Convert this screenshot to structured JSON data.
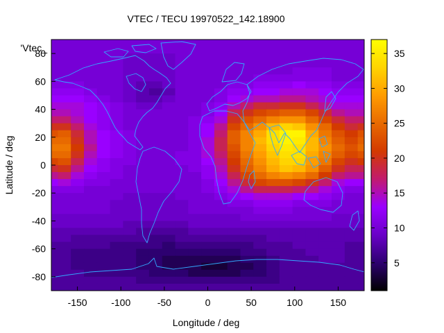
{
  "chart_data": {
    "type": "heatmap",
    "title": "VTEC / TECU 19970522_142.18900",
    "xlabel": "Longitude / deg",
    "ylabel": "Latitude / deg",
    "key_label": "'Vtec_",
    "xlim": [
      -180,
      180
    ],
    "ylim": [
      -90,
      90
    ],
    "xticks": [
      -150,
      -100,
      -50,
      0,
      50,
      100,
      150
    ],
    "yticks": [
      -80,
      -60,
      -40,
      -20,
      0,
      20,
      40,
      60,
      80
    ],
    "colorbar": {
      "range": [
        1,
        37
      ],
      "ticks": [
        5,
        10,
        15,
        20,
        25,
        30,
        35
      ],
      "palette": [
        "#000000",
        "#2d0070",
        "#6a00c8",
        "#9a00ff",
        "#c21b6e",
        "#d33a00",
        "#e86a00",
        "#ff9c00",
        "#ffd400",
        "#ffff00"
      ]
    },
    "grid": false,
    "coastline_color": "#33aaff",
    "lon_step": 15,
    "lat_step": 5,
    "lons": [
      -180,
      -165,
      -150,
      -135,
      -120,
      -105,
      -90,
      -75,
      -60,
      -45,
      -30,
      -15,
      0,
      15,
      30,
      45,
      60,
      75,
      90,
      105,
      120,
      135,
      150,
      165,
      180
    ],
    "lats": [
      87.5,
      82.5,
      77.5,
      72.5,
      67.5,
      62.5,
      57.5,
      52.5,
      47.5,
      42.5,
      37.5,
      32.5,
      27.5,
      22.5,
      17.5,
      12.5,
      7.5,
      2.5,
      -2.5,
      -7.5,
      -12.5,
      -17.5,
      -22.5,
      -27.5,
      -32.5,
      -37.5,
      -42.5,
      -47.5,
      -52.5,
      -57.5,
      -62.5,
      -67.5,
      -72.5,
      -77.5,
      -82.5,
      -87.5
    ],
    "values": [
      [
        10,
        10,
        10,
        10,
        10,
        10,
        10,
        10,
        10,
        10,
        10,
        10,
        10,
        10,
        10,
        10,
        10,
        10,
        10,
        10,
        10,
        10,
        10,
        10,
        10
      ],
      [
        10,
        10,
        10,
        10,
        10,
        10,
        10,
        10,
        10,
        10,
        10,
        10,
        10,
        10,
        10,
        10,
        10,
        10,
        10,
        10,
        10,
        10,
        10,
        10,
        10
      ],
      [
        10,
        10,
        10,
        10,
        10,
        10,
        9,
        9,
        9,
        9,
        10,
        10,
        10,
        10,
        10,
        10,
        10,
        10,
        10,
        10,
        10,
        10,
        10,
        10,
        10
      ],
      [
        10,
        10,
        10,
        10,
        10,
        10,
        9,
        9,
        9,
        9,
        10,
        10,
        10,
        10,
        10,
        10,
        10,
        10,
        10,
        10,
        10,
        10,
        10,
        10,
        10
      ],
      [
        10,
        10,
        10,
        10,
        10,
        10,
        9,
        9,
        9,
        9,
        10,
        10,
        10,
        10,
        10,
        10,
        10,
        10,
        10,
        11,
        11,
        11,
        10,
        10,
        10
      ],
      [
        10,
        10,
        10,
        10,
        10,
        10,
        9,
        9,
        9,
        9,
        10,
        10,
        10,
        10,
        10,
        10,
        11,
        11,
        11,
        11,
        11,
        11,
        10,
        10,
        10
      ],
      [
        11,
        11,
        11,
        10,
        10,
        10,
        9,
        8,
        8,
        9,
        10,
        10,
        10,
        10,
        11,
        11,
        12,
        12,
        12,
        13,
        12,
        12,
        11,
        11,
        11
      ],
      [
        12,
        12,
        12,
        11,
        10,
        10,
        9,
        8,
        7,
        8,
        10,
        10,
        10,
        11,
        12,
        12,
        13,
        13,
        14,
        14,
        14,
        13,
        12,
        12,
        12
      ],
      [
        13,
        13,
        13,
        12,
        11,
        10,
        9,
        8,
        8,
        9,
        10,
        10,
        10,
        11,
        13,
        14,
        15,
        15,
        16,
        16,
        15,
        14,
        13,
        13,
        13
      ],
      [
        14,
        14,
        14,
        13,
        12,
        11,
        10,
        9,
        9,
        10,
        10,
        10,
        11,
        12,
        15,
        17,
        19,
        19,
        20,
        20,
        18,
        16,
        14,
        14,
        14
      ],
      [
        15,
        15,
        14,
        13,
        12,
        11,
        10,
        10,
        10,
        10,
        10,
        10,
        11,
        13,
        18,
        20,
        22,
        23,
        24,
        24,
        22,
        19,
        16,
        15,
        15
      ],
      [
        17,
        17,
        15,
        13,
        12,
        11,
        10,
        10,
        10,
        10,
        10,
        11,
        12,
        14,
        20,
        23,
        25,
        27,
        28,
        28,
        25,
        22,
        19,
        17,
        17
      ],
      [
        20,
        20,
        17,
        14,
        12,
        11,
        10,
        10,
        10,
        10,
        10,
        11,
        13,
        16,
        22,
        25,
        28,
        31,
        33,
        32,
        28,
        25,
        21,
        19,
        20
      ],
      [
        23,
        24,
        19,
        15,
        13,
        12,
        11,
        10,
        10,
        10,
        10,
        11,
        13,
        17,
        24,
        27,
        30,
        34,
        36,
        36,
        30,
        26,
        23,
        21,
        23
      ],
      [
        25,
        25,
        20,
        15,
        13,
        12,
        11,
        10,
        10,
        10,
        10,
        11,
        14,
        18,
        24,
        27,
        31,
        34,
        36,
        35,
        31,
        27,
        24,
        22,
        24
      ],
      [
        26,
        26,
        21,
        16,
        13,
        12,
        11,
        10,
        10,
        10,
        10,
        11,
        14,
        18,
        23,
        27,
        30,
        33,
        35,
        34,
        31,
        28,
        25,
        23,
        25
      ],
      [
        25,
        25,
        20,
        15,
        13,
        12,
        11,
        10,
        10,
        10,
        11,
        11,
        14,
        17,
        22,
        26,
        29,
        32,
        34,
        34,
        30,
        27,
        24,
        22,
        23
      ],
      [
        22,
        23,
        18,
        14,
        12,
        11,
        11,
        10,
        10,
        10,
        11,
        11,
        13,
        16,
        21,
        25,
        28,
        31,
        33,
        33,
        29,
        26,
        22,
        20,
        21
      ],
      [
        19,
        20,
        16,
        13,
        12,
        11,
        10,
        10,
        10,
        10,
        10,
        11,
        12,
        15,
        20,
        24,
        27,
        30,
        32,
        31,
        28,
        24,
        20,
        18,
        18
      ],
      [
        16,
        17,
        14,
        12,
        11,
        11,
        10,
        10,
        10,
        10,
        10,
        10,
        12,
        14,
        18,
        22,
        25,
        27,
        28,
        27,
        25,
        21,
        17,
        16,
        16
      ],
      [
        13,
        14,
        12,
        11,
        11,
        10,
        10,
        10,
        10,
        10,
        10,
        10,
        11,
        13,
        16,
        19,
        22,
        23,
        23,
        22,
        20,
        17,
        14,
        13,
        13
      ],
      [
        11,
        11,
        11,
        10,
        10,
        10,
        10,
        10,
        10,
        10,
        10,
        10,
        11,
        12,
        14,
        16,
        18,
        18,
        18,
        17,
        16,
        14,
        12,
        11,
        11
      ],
      [
        10,
        10,
        10,
        10,
        10,
        10,
        9,
        9,
        9,
        9,
        10,
        10,
        10,
        11,
        12,
        13,
        14,
        14,
        14,
        13,
        13,
        12,
        11,
        10,
        10
      ],
      [
        10,
        10,
        10,
        10,
        10,
        9,
        9,
        9,
        9,
        9,
        9,
        10,
        10,
        10,
        11,
        11,
        12,
        12,
        12,
        11,
        11,
        11,
        10,
        10,
        10
      ],
      [
        10,
        10,
        10,
        10,
        10,
        9,
        9,
        9,
        9,
        9,
        9,
        10,
        10,
        10,
        10,
        10,
        11,
        11,
        11,
        10,
        10,
        10,
        10,
        10,
        10
      ],
      [
        9,
        9,
        9,
        9,
        9,
        9,
        9,
        9,
        9,
        9,
        9,
        9,
        9,
        9,
        9,
        10,
        10,
        10,
        10,
        10,
        10,
        10,
        9,
        9,
        9
      ],
      [
        9,
        9,
        9,
        9,
        9,
        9,
        8,
        8,
        8,
        8,
        8,
        9,
        9,
        9,
        9,
        9,
        9,
        9,
        9,
        9,
        9,
        9,
        9,
        9,
        9
      ],
      [
        8,
        8,
        8,
        8,
        8,
        8,
        8,
        7,
        7,
        7,
        7,
        8,
        8,
        8,
        8,
        8,
        8,
        8,
        8,
        8,
        8,
        8,
        8,
        8,
        8
      ],
      [
        8,
        8,
        7,
        7,
        7,
        7,
        7,
        7,
        6,
        6,
        7,
        7,
        7,
        7,
        7,
        7,
        7,
        8,
        8,
        8,
        8,
        8,
        8,
        8,
        8
      ],
      [
        7,
        7,
        7,
        7,
        7,
        6,
        6,
        6,
        6,
        5,
        6,
        6,
        6,
        6,
        6,
        6,
        7,
        7,
        7,
        8,
        8,
        8,
        8,
        7,
        7
      ],
      [
        7,
        7,
        6,
        6,
        6,
        6,
        6,
        5,
        5,
        5,
        5,
        5,
        5,
        5,
        5,
        6,
        6,
        7,
        7,
        7,
        8,
        8,
        8,
        7,
        7
      ],
      [
        7,
        7,
        6,
        6,
        6,
        6,
        6,
        5,
        5,
        4,
        4,
        4,
        4,
        4,
        4,
        5,
        5,
        6,
        7,
        7,
        7,
        8,
        8,
        7,
        7
      ],
      [
        7,
        7,
        6,
        6,
        6,
        6,
        6,
        5,
        5,
        4,
        4,
        4,
        3,
        3,
        4,
        4,
        5,
        6,
        7,
        7,
        7,
        7,
        7,
        7,
        7
      ],
      [
        7,
        7,
        7,
        6,
        6,
        6,
        6,
        6,
        5,
        5,
        5,
        4,
        4,
        4,
        4,
        5,
        5,
        6,
        7,
        7,
        7,
        7,
        7,
        7,
        7
      ],
      [
        7,
        7,
        7,
        7,
        7,
        7,
        7,
        6,
        6,
        6,
        6,
        6,
        6,
        6,
        6,
        6,
        6,
        6,
        7,
        7,
        7,
        7,
        7,
        7,
        7
      ],
      [
        7,
        7,
        7,
        7,
        7,
        7,
        7,
        7,
        7,
        7,
        7,
        7,
        7,
        7,
        7,
        7,
        7,
        7,
        7,
        7,
        7,
        7,
        7,
        7,
        7
      ]
    ]
  }
}
